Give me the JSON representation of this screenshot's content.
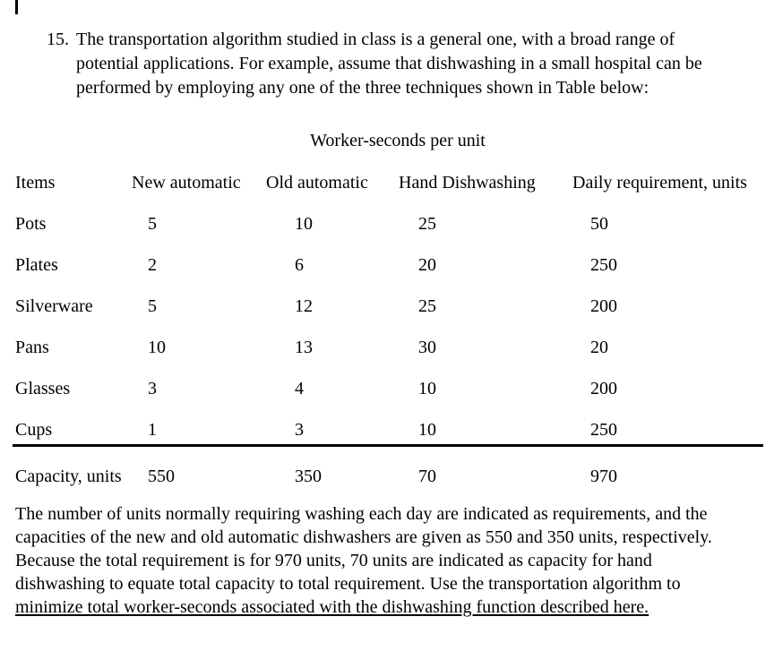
{
  "colors": {
    "text": "#000000",
    "background": "#ffffff"
  },
  "problem": {
    "number": "15.",
    "lines": [
      "The transportation algorithm studied in class is a general one, with a broad range of",
      "potential applications. For example, assume that dishwashing in a small hospital can be",
      "performed by employing any one of the three techniques shown in Table below:"
    ]
  },
  "table": {
    "title": "Worker-seconds per unit",
    "columns": [
      "Items",
      "New automatic",
      "Old automatic",
      "Hand Dishwashing",
      "Daily requirement, units"
    ],
    "rows": [
      {
        "item": "Pots",
        "values": [
          "5",
          "10",
          "25",
          "50"
        ]
      },
      {
        "item": "Plates",
        "values": [
          "2",
          "6",
          "20",
          "250"
        ]
      },
      {
        "item": "Silverware",
        "values": [
          "5",
          "12",
          "25",
          "200"
        ]
      },
      {
        "item": "Pans",
        "values": [
          "10",
          "13",
          "30",
          "20"
        ]
      },
      {
        "item": "Glasses",
        "values": [
          "3",
          "4",
          "10",
          "200"
        ]
      },
      {
        "item": "Cups",
        "values": [
          "1",
          "3",
          "10",
          "250"
        ]
      }
    ],
    "footer": {
      "item": "Capacity, units",
      "values": [
        "550",
        "350",
        "70",
        "970"
      ]
    }
  },
  "description": {
    "lines": [
      "The number of units normally requiring washing each day are indicated as requirements, and the",
      "capacities of the new and old automatic dishwashers are given as 550 and 350 units, respectively.",
      "Because the total requirement is for 970 units, 70 units are indicated as capacity for hand",
      "dishwashing to equate total capacity to total requirement. Use the transportation algorithm to",
      "minimize total worker-seconds associated with the dishwashing function described here."
    ]
  }
}
